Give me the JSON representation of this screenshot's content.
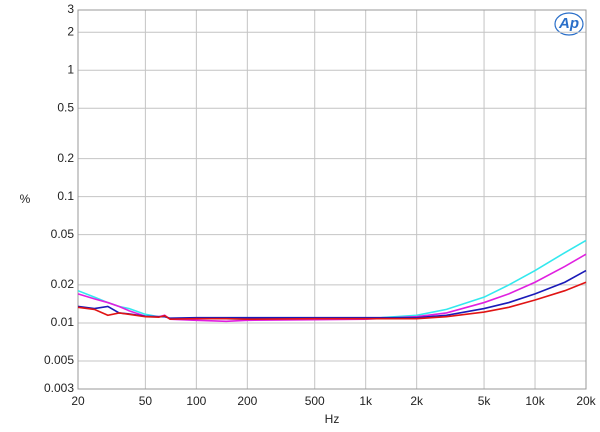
{
  "chart_data": {
    "type": "line",
    "logo": "Ap",
    "x_label": "Hz",
    "y_label": "%",
    "xscale": "log",
    "yscale": "log",
    "grid": true,
    "xlim": [
      20,
      20000
    ],
    "ylim": [
      0.003,
      3
    ],
    "xticks": [
      20,
      50,
      100,
      200,
      500,
      {
        "value": 1000,
        "label": "1k"
      },
      {
        "value": 2000,
        "label": "2k"
      },
      {
        "value": 5000,
        "label": "5k"
      },
      {
        "value": 10000,
        "label": "10k"
      },
      {
        "value": 20000,
        "label": "20k"
      }
    ],
    "yticks": [
      0.003,
      0.005,
      0.01,
      0.02,
      0.05,
      0.1,
      0.2,
      0.5,
      1,
      2,
      3
    ],
    "x": [
      20,
      25,
      30,
      35,
      40,
      50,
      60,
      65,
      70,
      100,
      150,
      200,
      500,
      1000,
      2000,
      3000,
      5000,
      7000,
      10000,
      15000,
      20000
    ],
    "series": [
      {
        "color": "#33e8ee",
        "values": [
          0.018,
          0.016,
          0.0145,
          0.0135,
          0.013,
          0.0117,
          0.0112,
          0.0113,
          0.0108,
          0.0108,
          0.0108,
          0.0107,
          0.0107,
          0.0108,
          0.0115,
          0.0128,
          0.016,
          0.02,
          0.026,
          0.036,
          0.045
        ]
      },
      {
        "color": "#e020e0",
        "values": [
          0.017,
          0.0155,
          0.0145,
          0.0135,
          0.0125,
          0.0113,
          0.0112,
          0.0115,
          0.0107,
          0.0105,
          0.0103,
          0.0105,
          0.0106,
          0.0107,
          0.0112,
          0.012,
          0.0145,
          0.017,
          0.021,
          0.028,
          0.035
        ]
      },
      {
        "color": "#1a1ab8",
        "values": [
          0.0135,
          0.013,
          0.0135,
          0.012,
          0.0118,
          0.0113,
          0.0112,
          0.0112,
          0.0109,
          0.011,
          0.011,
          0.011,
          0.011,
          0.011,
          0.011,
          0.0115,
          0.013,
          0.0145,
          0.017,
          0.021,
          0.026
        ]
      },
      {
        "color": "#e01414",
        "values": [
          0.0133,
          0.0128,
          0.0115,
          0.012,
          0.0117,
          0.0112,
          0.0111,
          0.0114,
          0.0107,
          0.0108,
          0.0108,
          0.0107,
          0.0108,
          0.0108,
          0.0108,
          0.0112,
          0.0122,
          0.0133,
          0.0152,
          0.018,
          0.021
        ]
      }
    ]
  }
}
